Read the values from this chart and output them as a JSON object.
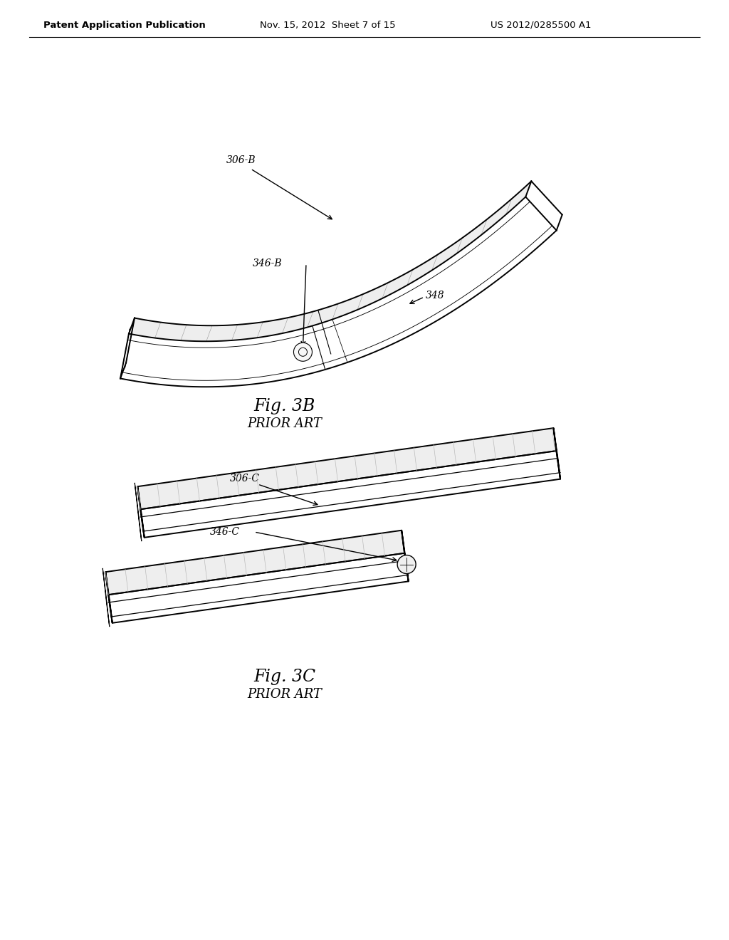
{
  "background_color": "#ffffff",
  "header_left": "Patent Application Publication",
  "header_mid": "Nov. 15, 2012  Sheet 7 of 15",
  "header_right": "US 2012/0285500 A1",
  "fig3b_label": "Fig. 3B",
  "fig3b_sub": "PRIOR ART",
  "fig3c_label": "Fig. 3C",
  "fig3c_sub": "PRIOR ART",
  "line_color": "#000000",
  "line_color_light": "#555555",
  "annotation_color": "#333333"
}
